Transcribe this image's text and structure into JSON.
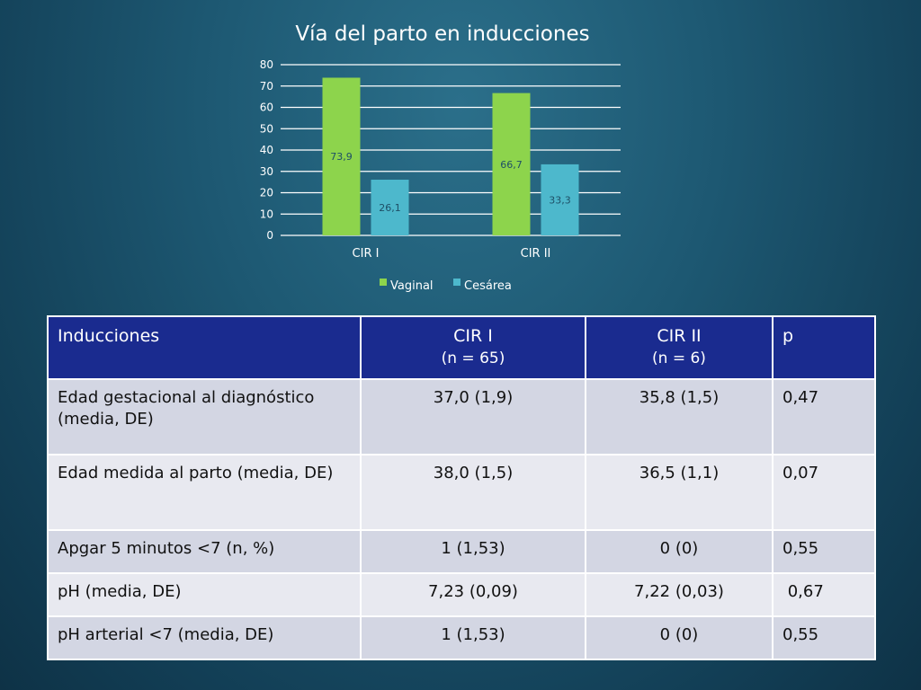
{
  "chart_data": {
    "type": "bar",
    "title": "Vía del parto en inducciones",
    "categories": [
      "CIR I",
      "CIR II"
    ],
    "series": [
      {
        "name": "Vaginal",
        "values": [
          73.9,
          66.7
        ],
        "labels": [
          "73,9",
          "66,7"
        ],
        "color": "#8dd44c"
      },
      {
        "name": "Cesárea",
        "values": [
          26.1,
          33.3
        ],
        "labels": [
          "26,1",
          "33,3"
        ],
        "color": "#4db8cc"
      }
    ],
    "ylim": [
      0,
      80
    ],
    "yticks": [
      0,
      10,
      20,
      30,
      40,
      50,
      60,
      70,
      80
    ],
    "grid": true,
    "legend_position": "bottom"
  },
  "table": {
    "headers": [
      {
        "title": "Inducciones",
        "sub": ""
      },
      {
        "title": "CIR I",
        "sub": "(n = 65)"
      },
      {
        "title": "CIR II",
        "sub": "(n = 6)"
      },
      {
        "title": "p",
        "sub": ""
      }
    ],
    "rows": [
      [
        "Edad gestacional al diagnóstico (media, DE)",
        "37,0 (1,9)",
        "35,8 (1,5)",
        "0,47"
      ],
      [
        "Edad medida al parto (media, DE)",
        "38,0 (1,5)",
        "36,5 (1,1)",
        "0,07"
      ],
      [
        "Apgar 5 minutos <7 (n, %)",
        "1 (1,53)",
        "0 (0)",
        "0,55"
      ],
      [
        "pH (media, DE)",
        "7,23 (0,09)",
        "7,22 (0,03)",
        " 0,67"
      ],
      [
        "pH arterial <7 (media, DE)",
        "1 (1,53)",
        "0 (0)",
        "0,55"
      ]
    ]
  }
}
